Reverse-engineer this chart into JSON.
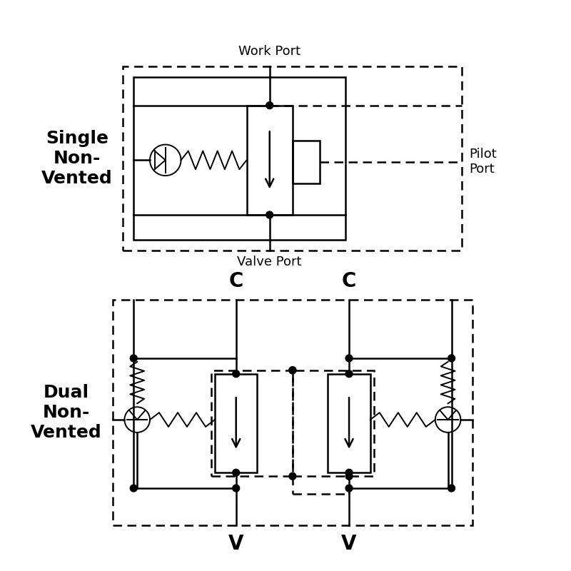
{
  "bg_color": "#ffffff",
  "line_color": "#000000",
  "lw": 1.8,
  "lw_thin": 1.4,
  "dashed_style": [
    5,
    3
  ],
  "title1": "Single\nNon-\nVented",
  "title2": "Dual\nNon-\nVented",
  "label_work_port": "Work Port",
  "label_valve_port": "Valve Port",
  "label_pilot_port": "Pilot\nPort",
  "label_C1": "C",
  "label_C2": "C",
  "label_V1": "V",
  "label_V2": "V",
  "font_size_port": 13,
  "font_size_title": 18,
  "font_size_CV": 20
}
